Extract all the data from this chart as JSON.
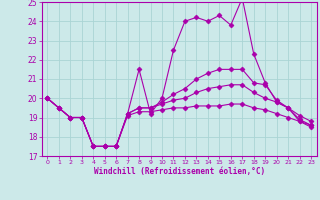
{
  "xlabel": "Windchill (Refroidissement éolien,°C)",
  "xlim": [
    -0.5,
    23.5
  ],
  "ylim": [
    17,
    25
  ],
  "yticks": [
    17,
    18,
    19,
    20,
    21,
    22,
    23,
    24,
    25
  ],
  "xticks": [
    0,
    1,
    2,
    3,
    4,
    5,
    6,
    7,
    8,
    9,
    10,
    11,
    12,
    13,
    14,
    15,
    16,
    17,
    18,
    19,
    20,
    21,
    22,
    23
  ],
  "background_color": "#cce9e9",
  "grid_color": "#aad4d4",
  "line_color": "#aa00aa",
  "lines": [
    {
      "x": [
        0,
        1,
        2,
        3,
        4,
        5,
        6,
        7,
        8,
        9,
        10,
        11,
        12,
        13,
        14,
        15,
        16,
        17,
        18,
        19,
        20,
        21,
        22,
        23
      ],
      "y": [
        20.0,
        19.5,
        19.0,
        19.0,
        17.5,
        17.5,
        17.5,
        19.2,
        21.5,
        19.2,
        20.0,
        22.5,
        24.0,
        24.2,
        24.0,
        24.3,
        23.8,
        25.2,
        22.3,
        20.8,
        19.8,
        19.5,
        18.8,
        18.5
      ]
    },
    {
      "x": [
        0,
        1,
        2,
        3,
        4,
        5,
        6,
        7,
        8,
        9,
        10,
        11,
        12,
        13,
        14,
        15,
        16,
        17,
        18,
        19,
        20,
        21,
        22,
        23
      ],
      "y": [
        20.0,
        19.5,
        19.0,
        19.0,
        17.5,
        17.5,
        17.5,
        19.2,
        19.5,
        19.5,
        19.8,
        20.2,
        20.5,
        21.0,
        21.3,
        21.5,
        21.5,
        21.5,
        20.8,
        20.7,
        19.9,
        19.5,
        18.9,
        18.6
      ]
    },
    {
      "x": [
        0,
        1,
        2,
        3,
        4,
        5,
        6,
        7,
        8,
        9,
        10,
        11,
        12,
        13,
        14,
        15,
        16,
        17,
        18,
        19,
        20,
        21,
        22,
        23
      ],
      "y": [
        20.0,
        19.5,
        19.0,
        19.0,
        17.5,
        17.5,
        17.5,
        19.2,
        19.5,
        19.5,
        19.7,
        19.9,
        20.0,
        20.3,
        20.5,
        20.6,
        20.7,
        20.7,
        20.3,
        20.0,
        19.8,
        19.5,
        19.1,
        18.8
      ]
    },
    {
      "x": [
        0,
        1,
        2,
        3,
        4,
        5,
        6,
        7,
        8,
        9,
        10,
        11,
        12,
        13,
        14,
        15,
        16,
        17,
        18,
        19,
        20,
        21,
        22,
        23
      ],
      "y": [
        20.0,
        19.5,
        19.0,
        19.0,
        17.5,
        17.5,
        17.5,
        19.1,
        19.3,
        19.3,
        19.4,
        19.5,
        19.5,
        19.6,
        19.6,
        19.6,
        19.7,
        19.7,
        19.5,
        19.4,
        19.2,
        19.0,
        18.8,
        18.6
      ]
    }
  ]
}
